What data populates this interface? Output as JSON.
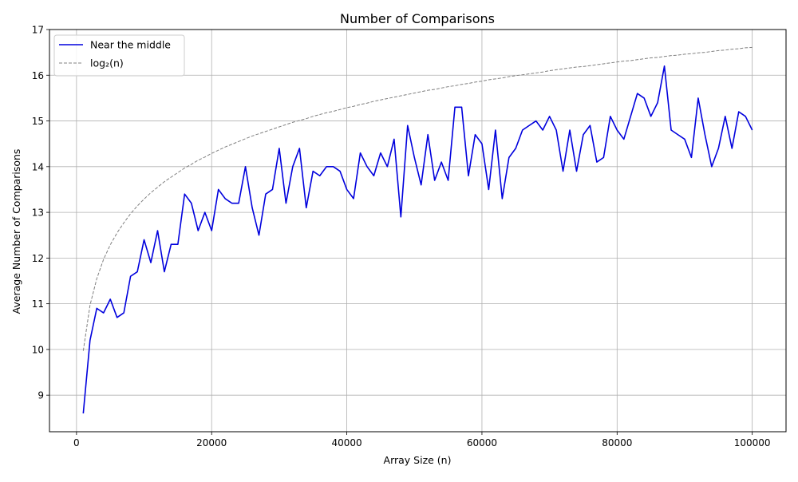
{
  "chart_data": {
    "type": "line",
    "title": "Number of Comparisons",
    "xlabel": "Array Size (n)",
    "ylabel": "Average Number of Comparisons",
    "xlim": [
      -4000,
      105000
    ],
    "ylim": [
      8.2,
      17
    ],
    "xticks": [
      0,
      20000,
      40000,
      60000,
      80000,
      100000
    ],
    "yticks": [
      9,
      10,
      11,
      12,
      13,
      14,
      15,
      16,
      17
    ],
    "grid": true,
    "legend_position": "top-left",
    "series": [
      {
        "name": "Near the middle",
        "color": "#0000dd",
        "style": "solid",
        "x": [
          1000,
          2000,
          3000,
          4000,
          5000,
          6000,
          7000,
          8000,
          9000,
          10000,
          11000,
          12000,
          13000,
          14000,
          15000,
          16000,
          17000,
          18000,
          19000,
          20000,
          21000,
          22000,
          23000,
          24000,
          25000,
          26000,
          27000,
          28000,
          29000,
          30000,
          31000,
          32000,
          33000,
          34000,
          35000,
          36000,
          37000,
          38000,
          39000,
          40000,
          41000,
          42000,
          43000,
          44000,
          45000,
          46000,
          47000,
          48000,
          49000,
          50000,
          51000,
          52000,
          53000,
          54000,
          55000,
          56000,
          57000,
          58000,
          59000,
          60000,
          61000,
          62000,
          63000,
          64000,
          65000,
          66000,
          67000,
          68000,
          69000,
          70000,
          71000,
          72000,
          73000,
          74000,
          75000,
          76000,
          77000,
          78000,
          79000,
          80000,
          81000,
          82000,
          83000,
          84000,
          85000,
          86000,
          87000,
          88000,
          89000,
          90000,
          91000,
          92000,
          93000,
          94000,
          95000,
          96000,
          97000,
          98000,
          99000,
          100000
        ],
        "y": [
          8.6,
          10.2,
          10.9,
          10.8,
          11.1,
          10.7,
          10.8,
          11.6,
          11.7,
          12.4,
          11.9,
          12.6,
          11.7,
          12.3,
          12.3,
          13.4,
          13.2,
          12.6,
          13.0,
          12.6,
          13.5,
          13.3,
          13.2,
          13.2,
          14.0,
          13.1,
          12.5,
          13.4,
          13.5,
          14.4,
          13.2,
          14.0,
          14.4,
          13.1,
          13.9,
          13.8,
          14.0,
          14.0,
          13.9,
          13.5,
          13.3,
          14.3,
          14.0,
          13.8,
          14.3,
          14.0,
          14.6,
          12.9,
          14.9,
          14.2,
          13.6,
          14.7,
          13.7,
          14.1,
          13.7,
          15.3,
          15.3,
          13.8,
          14.7,
          14.5,
          13.5,
          14.8,
          13.3,
          14.2,
          14.4,
          14.8,
          14.9,
          15.0,
          14.8,
          15.1,
          14.8,
          13.9,
          14.8,
          13.9,
          14.7,
          14.9,
          14.1,
          14.2,
          15.1,
          14.8,
          14.6,
          15.1,
          15.6,
          15.5,
          15.1,
          15.4,
          16.2,
          14.8,
          14.7,
          14.6,
          14.2,
          15.5,
          14.7,
          14.0,
          14.4,
          15.1,
          14.4,
          15.2,
          15.1,
          14.8
        ]
      },
      {
        "name": "log₂(n)",
        "color": "#808080",
        "style": "dashed",
        "x": [
          1000,
          2000,
          3000,
          4000,
          5000,
          6000,
          7000,
          8000,
          9000,
          10000,
          11000,
          12000,
          13000,
          14000,
          15000,
          16000,
          17000,
          18000,
          19000,
          20000,
          21000,
          22000,
          23000,
          24000,
          25000,
          26000,
          27000,
          28000,
          29000,
          30000,
          31000,
          32000,
          33000,
          34000,
          35000,
          36000,
          37000,
          38000,
          39000,
          40000,
          41000,
          42000,
          43000,
          44000,
          45000,
          46000,
          47000,
          48000,
          49000,
          50000,
          51000,
          52000,
          53000,
          54000,
          55000,
          56000,
          57000,
          58000,
          59000,
          60000,
          61000,
          62000,
          63000,
          64000,
          65000,
          66000,
          67000,
          68000,
          69000,
          70000,
          71000,
          72000,
          73000,
          74000,
          75000,
          76000,
          77000,
          78000,
          79000,
          80000,
          81000,
          82000,
          83000,
          84000,
          85000,
          86000,
          87000,
          88000,
          89000,
          90000,
          91000,
          92000,
          93000,
          94000,
          95000,
          96000,
          97000,
          98000,
          99000,
          100000
        ],
        "y": [
          9.97,
          10.97,
          11.55,
          11.97,
          12.29,
          12.55,
          12.77,
          12.97,
          13.14,
          13.29,
          13.43,
          13.55,
          13.67,
          13.77,
          13.87,
          13.97,
          14.05,
          14.14,
          14.21,
          14.29,
          14.36,
          14.43,
          14.49,
          14.55,
          14.61,
          14.67,
          14.72,
          14.77,
          14.82,
          14.87,
          14.92,
          14.97,
          15.01,
          15.05,
          15.1,
          15.14,
          15.18,
          15.21,
          15.25,
          15.29,
          15.32,
          15.36,
          15.39,
          15.43,
          15.46,
          15.49,
          15.52,
          15.55,
          15.58,
          15.61,
          15.64,
          15.67,
          15.69,
          15.72,
          15.75,
          15.77,
          15.8,
          15.82,
          15.85,
          15.87,
          15.9,
          15.92,
          15.94,
          15.97,
          15.99,
          16.01,
          16.03,
          16.05,
          16.07,
          16.1,
          16.12,
          16.14,
          16.16,
          16.18,
          16.19,
          16.21,
          16.23,
          16.25,
          16.27,
          16.29,
          16.31,
          16.32,
          16.34,
          16.36,
          16.38,
          16.39,
          16.41,
          16.43,
          16.44,
          16.46,
          16.47,
          16.49,
          16.5,
          16.52,
          16.54,
          16.55,
          16.57,
          16.58,
          16.6,
          16.61
        ]
      }
    ]
  }
}
